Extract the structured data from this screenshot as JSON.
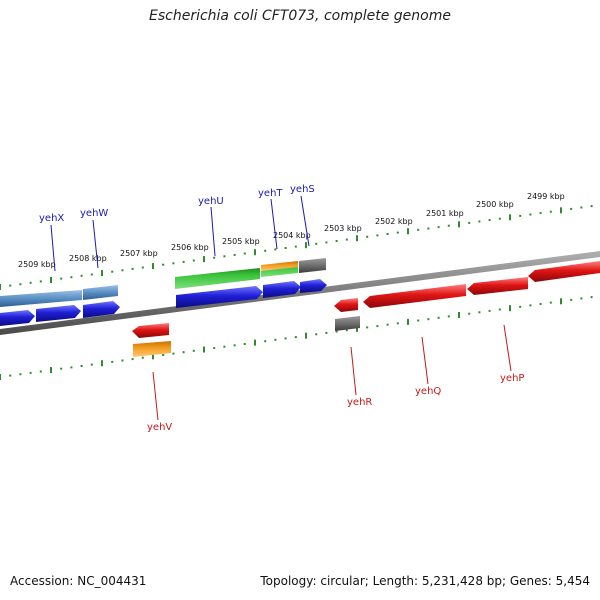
{
  "title": "Escherichia coli CFT073, complete genome",
  "footer": {
    "accession": "Accession: NC_004431",
    "summary": "Topology: circular; Length: 5,231,428 bp; Genes: 5,454"
  },
  "colors": {
    "background": "#ffffff",
    "tick": "#2e8b2e",
    "backbone": "#8c8c8c",
    "plus_strand_gene": "#1f1fd6",
    "minus_strand_gene": "#e01515",
    "plus_label": "#1a1ab3",
    "minus_label": "#c41a1a",
    "cds_blue": "#5a8fc4",
    "cds_green": "#3cc43c",
    "cds_orange": "#f09a1e",
    "cds_gray": "#6e6e6e"
  },
  "map": {
    "kbp_labels": [
      "2509 kbp",
      "2508 kbp",
      "2507 kbp",
      "2506 kbp",
      "2505 kbp",
      "2504 kbp",
      "2503 kbp",
      "2502 kbp",
      "2501 kbp",
      "2500 kbp",
      "2499 kbp"
    ],
    "genes_plus": [
      "yehX",
      "yehW",
      "yehU",
      "yehT",
      "yehS"
    ],
    "genes_minus": [
      "yehV",
      "yehR",
      "yehQ",
      "yehP"
    ]
  }
}
